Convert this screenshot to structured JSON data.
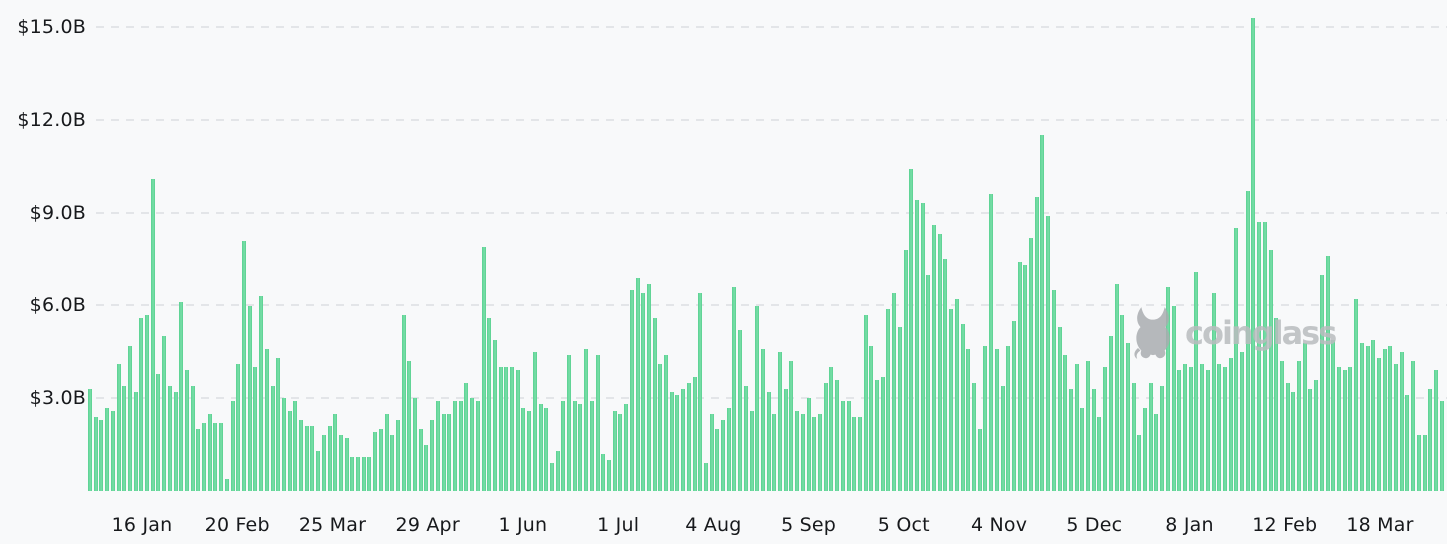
{
  "watermark": {
    "text": "coinglass"
  },
  "colors": {
    "bar": "#5fd394",
    "background": "#f8f9fa",
    "gridline": "#e3e5e8",
    "axis_text": "#17191c",
    "watermark": "#b9bcbf"
  },
  "chart_data": {
    "type": "bar",
    "unit": "USD billions",
    "grid": "horizontal-dashed",
    "legend": "none",
    "ylim": [
      0,
      15.5
    ],
    "y_ticks": [
      {
        "label": "$3.0B",
        "value": 3
      },
      {
        "label": "$6.0B",
        "value": 6
      },
      {
        "label": "$9.0B",
        "value": 9
      },
      {
        "label": "$12.0B",
        "value": 12
      },
      {
        "label": "$15.0B",
        "value": 15
      }
    ],
    "x_ticks": [
      "16 Jan",
      "20 Feb",
      "25 Mar",
      "29 Apr",
      "1 Jun",
      "1 Jul",
      "4 Aug",
      "5 Sep",
      "5 Oct",
      "4 Nov",
      "5 Dec",
      "8 Jan",
      "12 Feb",
      "18 Mar"
    ],
    "values": [
      3.3,
      2.4,
      2.3,
      2.7,
      2.6,
      4.1,
      3.4,
      4.7,
      3.2,
      5.6,
      5.7,
      10.1,
      3.8,
      5.0,
      3.4,
      3.2,
      6.1,
      3.9,
      3.4,
      2.0,
      2.2,
      2.5,
      2.2,
      2.2,
      0.4,
      2.9,
      4.1,
      8.1,
      6.0,
      4.0,
      6.3,
      4.6,
      3.4,
      4.3,
      3.0,
      2.6,
      2.9,
      2.3,
      2.1,
      2.1,
      1.3,
      1.8,
      2.1,
      2.5,
      1.8,
      1.7,
      1.1,
      1.1,
      1.1,
      1.1,
      1.9,
      2.0,
      2.5,
      1.8,
      2.3,
      5.7,
      4.2,
      3.0,
      2.0,
      1.5,
      2.3,
      2.9,
      2.5,
      2.5,
      2.9,
      2.9,
      3.5,
      3.0,
      2.9,
      7.9,
      5.6,
      4.9,
      4.0,
      4.0,
      4.0,
      3.9,
      2.7,
      2.6,
      4.5,
      2.8,
      2.7,
      0.9,
      1.3,
      2.9,
      4.4,
      2.9,
      2.8,
      4.6,
      2.9,
      4.4,
      1.2,
      1.0,
      2.6,
      2.5,
      2.8,
      6.5,
      6.9,
      6.4,
      6.7,
      5.6,
      4.1,
      4.4,
      3.2,
      3.1,
      3.3,
      3.5,
      3.7,
      6.4,
      0.9,
      2.5,
      2.0,
      2.3,
      2.7,
      6.6,
      5.2,
      3.4,
      2.6,
      6.0,
      4.6,
      3.2,
      2.5,
      4.5,
      3.3,
      4.2,
      2.6,
      2.5,
      3.0,
      2.4,
      2.5,
      3.5,
      4.0,
      3.6,
      2.9,
      2.9,
      2.4,
      2.4,
      5.7,
      4.7,
      3.6,
      3.7,
      5.9,
      6.4,
      5.3,
      7.8,
      10.4,
      9.4,
      9.3,
      7.0,
      8.6,
      8.3,
      7.5,
      5.9,
      6.2,
      5.4,
      4.6,
      3.5,
      2.0,
      4.7,
      9.6,
      4.6,
      3.4,
      4.7,
      5.5,
      7.4,
      7.3,
      8.2,
      9.5,
      11.5,
      8.9,
      6.5,
      5.3,
      4.4,
      3.3,
      4.1,
      2.7,
      4.2,
      3.3,
      2.4,
      4.0,
      5.0,
      6.7,
      5.7,
      4.8,
      3.5,
      1.8,
      2.7,
      3.5,
      2.5,
      3.4,
      6.6,
      6.0,
      3.9,
      4.1,
      4.0,
      7.1,
      4.1,
      3.9,
      6.4,
      4.1,
      4.0,
      4.3,
      8.5,
      4.5,
      9.7,
      15.3,
      8.7,
      8.7,
      7.8,
      5.6,
      4.2,
      3.5,
      3.2,
      4.2,
      4.8,
      3.3,
      3.6,
      7.0,
      7.6,
      4.9,
      4.0,
      3.9,
      4.0,
      6.2,
      4.8,
      4.7,
      4.9,
      4.3,
      4.6,
      4.7,
      4.1,
      4.5,
      3.1,
      4.2,
      1.8,
      1.8,
      3.3,
      3.9,
      2.9
    ]
  }
}
